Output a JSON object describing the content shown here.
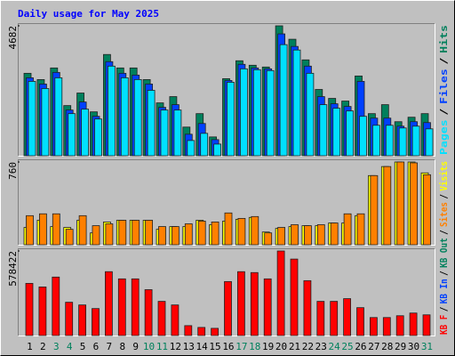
{
  "title": "Daily usage for May 2025",
  "categories": [
    "1",
    "2",
    "3",
    "4",
    "5",
    "6",
    "7",
    "8",
    "9",
    "10",
    "11",
    "12",
    "13",
    "14",
    "15",
    "16",
    "17",
    "18",
    "19",
    "20",
    "21",
    "22",
    "23",
    "24",
    "25",
    "26",
    "27",
    "28",
    "29",
    "30",
    "31"
  ],
  "highlighted": [
    2,
    3,
    9,
    10,
    16,
    17,
    23,
    24,
    30
  ],
  "highlight_color": "#00805c",
  "legend_separator": "/",
  "chart_data": [
    {
      "type": "bar",
      "ylim": [
        0,
        4682
      ],
      "yticks": [
        4682
      ],
      "series": [
        {
          "name": "Hits",
          "color": "#00805c",
          "values": [
            2971,
            2745,
            3164,
            1808,
            2260,
            1582,
            3649,
            3164,
            3164,
            2745,
            1905,
            2131,
            1033,
            1518,
            678,
            2777,
            3423,
            3261,
            3197,
            4682,
            4198,
            3455,
            2389,
            2067,
            1970,
            2874,
            1518,
            1841,
            1227,
            1388,
            1518
          ]
        },
        {
          "name": "Files",
          "color": "#0040ff",
          "values": [
            2809,
            2583,
            3003,
            1647,
            1937,
            1421,
            3390,
            2971,
            2906,
            2583,
            1744,
            1841,
            775,
            1162,
            581,
            2712,
            3294,
            3164,
            3132,
            4391,
            3939,
            3229,
            2131,
            1873,
            1776,
            2680,
            1356,
            1356,
            1066,
            1227,
            1195
          ]
        },
        {
          "name": "Pages",
          "color": "#00e0ff",
          "values": [
            2680,
            2422,
            2809,
            1518,
            1679,
            1324,
            3229,
            2809,
            2745,
            2357,
            1647,
            1647,
            549,
            807,
            420,
            2648,
            3132,
            3100,
            3068,
            4004,
            3810,
            2971,
            1841,
            1711,
            1615,
            1421,
            1098,
            1098,
            1001,
            1066,
            969
          ]
        }
      ]
    },
    {
      "type": "bar",
      "ylim": [
        0,
        760
      ],
      "yticks": [
        760
      ],
      "series": [
        {
          "name": "Visits",
          "color": "#ffff00",
          "values": [
            159,
            225,
            167,
            159,
            225,
            109,
            209,
            225,
            225,
            225,
            142,
            167,
            167,
            225,
            184,
            217,
            234,
            251,
            117,
            150,
            167,
            175,
            175,
            200,
            200,
            267,
            635,
            718,
            760,
            760,
            660
          ]
        },
        {
          "name": "Sites",
          "color": "#ff8000",
          "values": [
            267,
            284,
            284,
            142,
            267,
            175,
            192,
            225,
            225,
            225,
            167,
            167,
            192,
            217,
            209,
            292,
            242,
            259,
            109,
            159,
            184,
            175,
            184,
            200,
            284,
            284,
            635,
            718,
            760,
            752,
            643
          ]
        }
      ]
    },
    {
      "type": "bar",
      "ylim": [
        0,
        578422
      ],
      "yticks": [
        578422
      ],
      "series": [
        {
          "name": "KB F",
          "color": "#ff0000",
          "values": [
            356897,
            332284,
            399971,
            227676,
            209216,
            184602,
            436891,
            387664,
            387664,
            313823,
            233829,
            209216,
            67687,
            55381,
            49227,
            369204,
            436891,
            430738,
            387664,
            578422,
            523039,
            375357,
            233829,
            233829,
            252289,
            190755,
            123068,
            123068,
            135375,
            153835,
            141528
          ]
        }
      ],
      "legend_only": [
        {
          "name": "KB In",
          "color": "#0040ff"
        },
        {
          "name": "KB Out",
          "color": "#00805c"
        }
      ]
    }
  ]
}
